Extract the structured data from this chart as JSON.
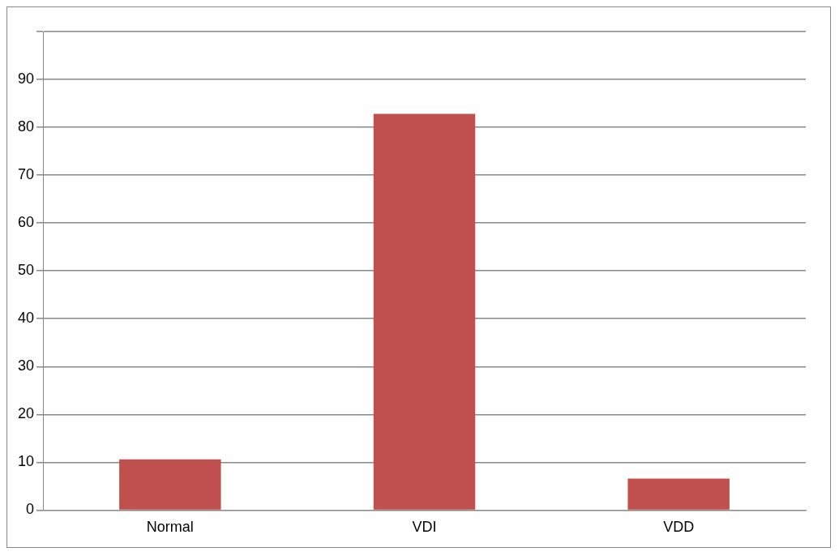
{
  "chart_data": {
    "type": "bar",
    "categories": [
      "Normal",
      "VDI",
      "VDD"
    ],
    "values": [
      10.6,
      82.8,
      6.6
    ],
    "color": "#c0504d",
    "ylim": [
      0,
      100
    ],
    "yticks": [
      0,
      10,
      20,
      30,
      40,
      50,
      60,
      70,
      80,
      90,
      {
        "value": 100,
        "label": null
      }
    ],
    "grid": "y",
    "legend": false
  }
}
